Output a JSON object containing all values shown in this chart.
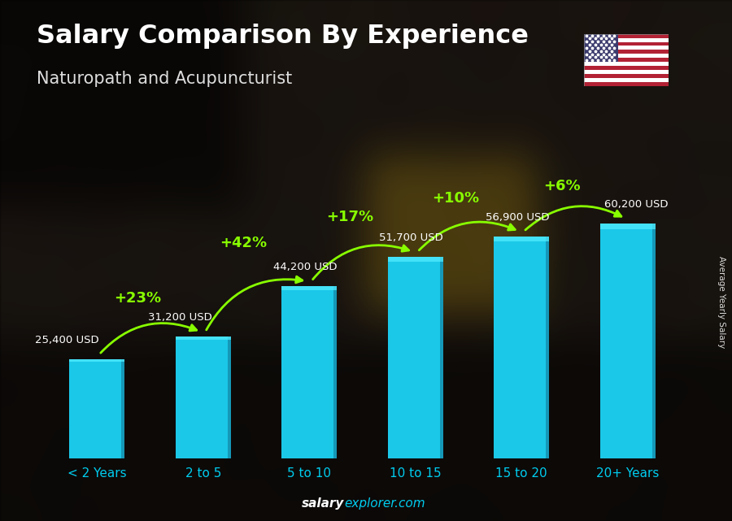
{
  "title": "Salary Comparison By Experience",
  "subtitle": "Naturopath and Acupuncturist",
  "categories": [
    "< 2 Years",
    "2 to 5",
    "5 to 10",
    "10 to 15",
    "15 to 20",
    "20+ Years"
  ],
  "values": [
    25400,
    31200,
    44200,
    51700,
    56900,
    60200
  ],
  "labels": [
    "25,400 USD",
    "31,200 USD",
    "44,200 USD",
    "51,700 USD",
    "56,900 USD",
    "60,200 USD"
  ],
  "pct_changes": [
    "+23%",
    "+42%",
    "+17%",
    "+10%",
    "+6%"
  ],
  "bar_color_main": "#1BC8E8",
  "bar_color_left": "#1ABDE0",
  "bar_color_right": "#1590B0",
  "pct_color": "#88FF00",
  "label_color_white": "#FFFFFF",
  "title_color": "#FFFFFF",
  "subtitle_color": "#DDDDDD",
  "xticklabel_color": "#00CCEE",
  "bg_dark": "#1a1a2a",
  "footer_salary_color": "#FFFFFF",
  "footer_explorer_color": "#00CCEE",
  "ylabel_text": "Average Yearly Salary",
  "footer_salary": "salary",
  "footer_explorer": "explorer.com",
  "figsize": [
    9.0,
    6.41
  ],
  "dpi": 100,
  "ylim_max": 80000,
  "bar_width": 0.52
}
